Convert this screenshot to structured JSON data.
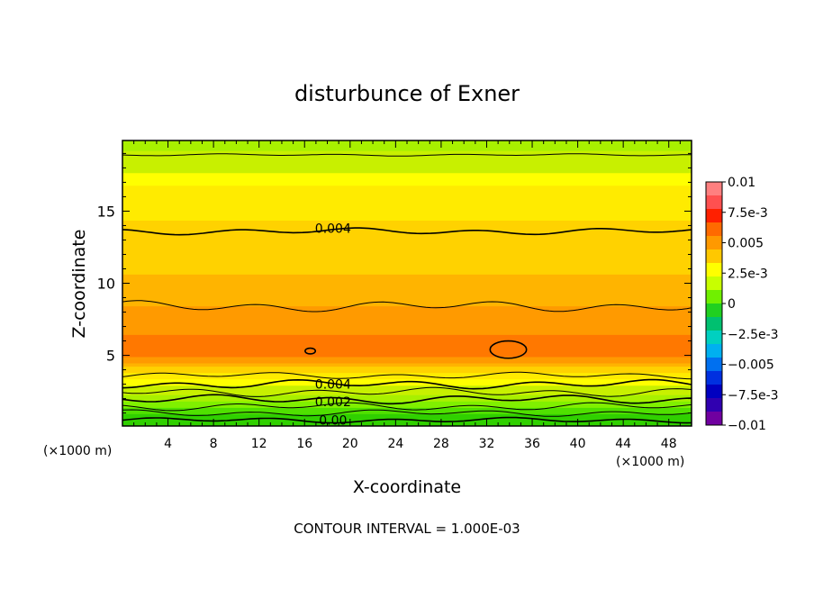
{
  "chart_data": {
    "type": "heatmap",
    "title": "disturbunce of Exner",
    "xlabel": "X-coordinate",
    "ylabel": "Z-coordinate",
    "x_unit_left": "(×1000 m)",
    "x_unit_right": "(×1000 m)",
    "footer": "CONTOUR INTERVAL = 1.000E-03",
    "xlim": [
      0,
      50
    ],
    "ylim": [
      0.1,
      19.9
    ],
    "x_ticks": [
      "4",
      "8",
      "12",
      "16",
      "20",
      "24",
      "28",
      "32",
      "36",
      "40",
      "44",
      "48"
    ],
    "y_ticks": [
      "5",
      "10",
      "15"
    ],
    "contour_labels": [
      {
        "text": "0.004",
        "x": 18.5,
        "z": 13.8
      },
      {
        "text": "0.004",
        "x": 18.5,
        "z": 3.0
      },
      {
        "text": "0.002",
        "x": 18.5,
        "z": 1.8
      },
      {
        "text": "0.00",
        "x": 18.5,
        "z": 0.5
      }
    ],
    "profile_z": [
      0.1,
      0.9,
      1.4,
      1.9,
      2.4,
      3.0,
      3.6,
      4.3,
      5.0,
      5.9,
      7.3,
      8.5,
      10.0,
      11.5,
      13.6,
      15.8,
      17.2,
      18.5,
      19.9
    ],
    "profile_value": [
      0.0,
      0.0005,
      0.001,
      0.0015,
      0.002,
      0.0025,
      0.0035,
      0.0045,
      0.0058,
      0.006,
      0.0055,
      0.005,
      0.0047,
      0.0042,
      0.004,
      0.0035,
      0.0028,
      0.002,
      0.0018
    ],
    "colorbar": {
      "labels": [
        "0.01",
        "7.5e-3",
        "0.005",
        "2.5e-3",
        "0",
        "−2.5e-3",
        "−0.005",
        "−7.5e-3",
        "−0.01"
      ],
      "colors": [
        "#FF8080",
        "#FF5050",
        "#FF2000",
        "#FF6A00",
        "#FF9900",
        "#FFC800",
        "#FFFF00",
        "#C8FF00",
        "#70F000",
        "#20D020",
        "#00C070",
        "#00D0C0",
        "#00B0F0",
        "#0070F0",
        "#0030E0",
        "#0000C0",
        "#3000B0",
        "#7000A0"
      ]
    }
  }
}
